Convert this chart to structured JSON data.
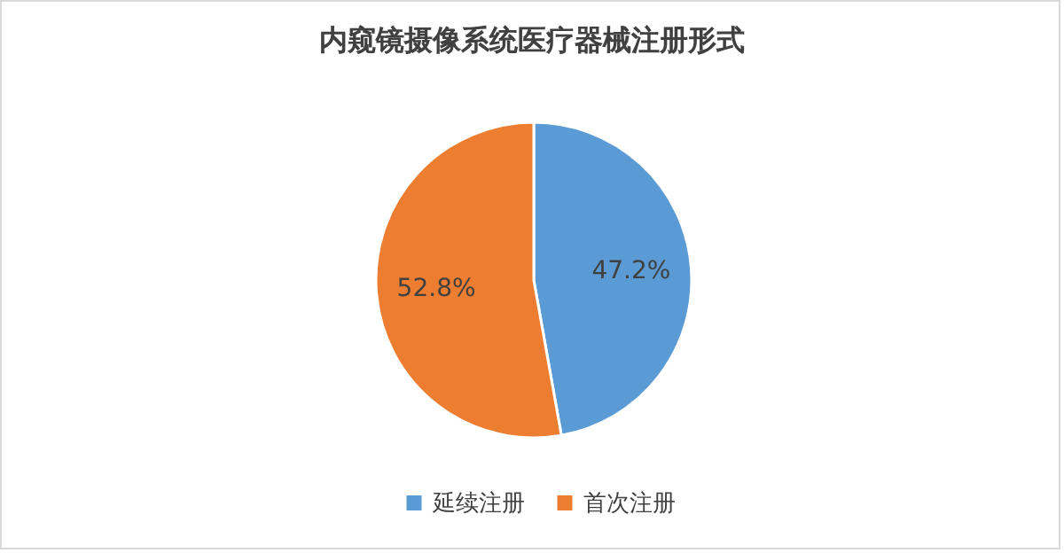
{
  "chart_data": {
    "type": "pie",
    "title": "内窥镜摄像系统医疗器械注册形式",
    "categories": [
      "延续注册",
      "首次注册"
    ],
    "values": [
      47.2,
      52.8
    ],
    "colors": [
      "#5b9bd5",
      "#ed7d31"
    ],
    "value_labels": [
      "47.2%",
      "52.8%"
    ],
    "legend": "bottom"
  }
}
